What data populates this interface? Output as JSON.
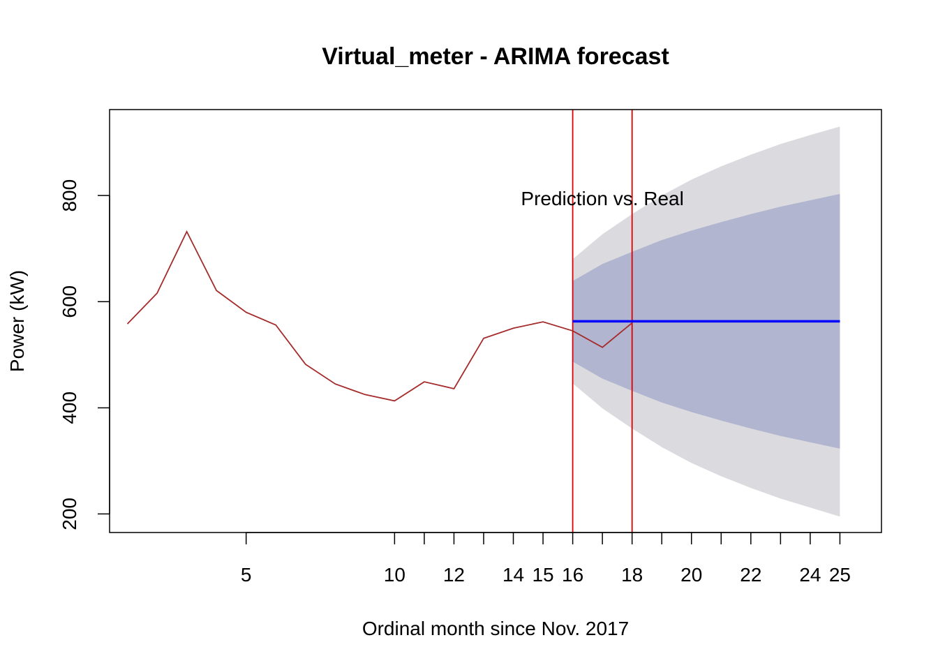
{
  "chart_data": {
    "type": "line",
    "title": "Virtual_meter - ARIMA forecast",
    "xlabel": "Ordinal month since Nov. 2017",
    "ylabel": "Power (kW)",
    "xlim": [
      0.4,
      26.4
    ],
    "ylim": [
      165,
      962
    ],
    "x_tick_labels": [
      {
        "x": 5,
        "label": "5"
      },
      {
        "x": 10,
        "label": "10"
      },
      {
        "x": 12,
        "label": "12"
      },
      {
        "x": 14,
        "label": "14"
      },
      {
        "x": 15,
        "label": "15"
      },
      {
        "x": 16,
        "label": "16"
      },
      {
        "x": 18,
        "label": "18"
      },
      {
        "x": 20,
        "label": "20"
      },
      {
        "x": 22,
        "label": "22"
      },
      {
        "x": 24,
        "label": "24"
      },
      {
        "x": 25,
        "label": "25"
      }
    ],
    "x_ticks": [
      5,
      10,
      11,
      12,
      13,
      14,
      15,
      16,
      17,
      18,
      19,
      20,
      21,
      22,
      23,
      24,
      25
    ],
    "y_ticks": [
      200,
      400,
      600,
      800
    ],
    "series": [
      {
        "role": "observed",
        "color": "#a52a2a",
        "x": [
          1,
          2,
          3,
          4,
          5,
          6,
          7,
          8,
          9,
          10,
          11,
          12,
          13,
          14,
          15,
          16,
          17,
          18
        ],
        "values": [
          558,
          616,
          732,
          621,
          580,
          556,
          482,
          445,
          425,
          413,
          449,
          436,
          531,
          550,
          562,
          545,
          514,
          560
        ]
      },
      {
        "role": "forecast",
        "color": "#0000ff",
        "x": [
          16,
          25
        ],
        "values": [
          563,
          563
        ]
      }
    ],
    "bands": [
      {
        "level": "95",
        "color": "#dbdbdf",
        "x": [
          16,
          17,
          18,
          19,
          20,
          21,
          22,
          23,
          24,
          25
        ],
        "upper": [
          680,
          727,
          765,
          800,
          830,
          855,
          877,
          897,
          914,
          930
        ],
        "lower": [
          446,
          399,
          361,
          326,
          296,
          271,
          249,
          229,
          212,
          195
        ]
      },
      {
        "level": "80",
        "color": "#b1b5cf",
        "x": [
          16,
          17,
          18,
          19,
          20,
          21,
          22,
          23,
          24,
          25
        ],
        "upper": [
          639,
          671,
          694,
          716,
          734,
          750,
          765,
          779,
          791,
          803
        ],
        "lower": [
          487,
          455,
          432,
          410,
          392,
          376,
          361,
          347,
          335,
          323
        ]
      }
    ],
    "vlines": [
      {
        "x": 16,
        "color": "#dd0000"
      },
      {
        "x": 18,
        "color": "#dd0000"
      }
    ],
    "annotations": [
      {
        "text": "Prediction vs. Real",
        "x": 17,
        "y": 782
      }
    ],
    "grid": false
  }
}
